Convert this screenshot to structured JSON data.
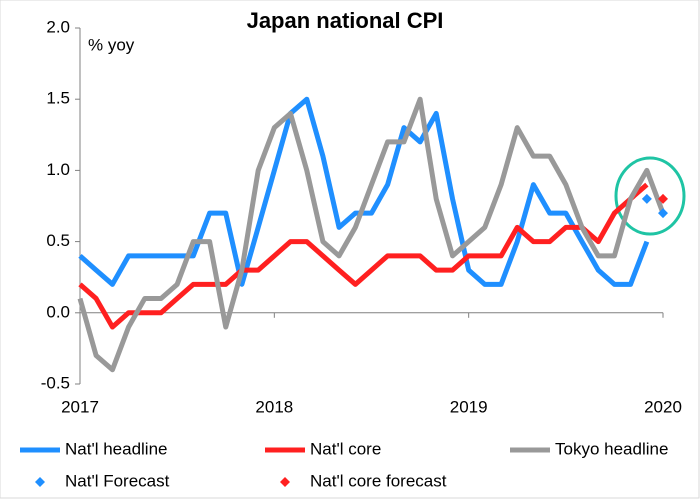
{
  "chart_data": {
    "type": "line",
    "title": "Japan national CPI",
    "y_label": "% yoy",
    "x": [
      2017,
      2017.083,
      2017.167,
      2017.25,
      2017.333,
      2017.417,
      2017.5,
      2017.583,
      2017.667,
      2017.75,
      2017.833,
      2017.917,
      2018,
      2018.083,
      2018.167,
      2018.25,
      2018.333,
      2018.417,
      2018.5,
      2018.583,
      2018.667,
      2018.75,
      2018.833,
      2018.917,
      2019,
      2019.083,
      2019.167,
      2019.25,
      2019.333,
      2019.417,
      2019.5,
      2019.583,
      2019.667,
      2019.75,
      2019.833,
      2019.917,
      2020
    ],
    "series": [
      {
        "name": "Nat'l headline",
        "color": "#1f8fff",
        "marker": "line",
        "values": [
          0.4,
          0.3,
          0.2,
          0.4,
          0.4,
          0.4,
          0.4,
          0.4,
          0.7,
          0.7,
          0.2,
          0.6,
          1.0,
          1.4,
          1.5,
          1.1,
          0.6,
          0.7,
          0.7,
          0.9,
          1.3,
          1.2,
          1.4,
          0.8,
          0.3,
          0.2,
          0.2,
          0.5,
          0.9,
          0.7,
          0.7,
          0.5,
          0.3,
          0.2,
          0.2,
          0.5,
          null
        ]
      },
      {
        "name": "Nat'l core",
        "color": "#ff2020",
        "marker": "line",
        "values": [
          0.2,
          0.1,
          -0.1,
          0.0,
          0.0,
          0.0,
          0.1,
          0.2,
          0.2,
          0.2,
          0.3,
          0.3,
          0.4,
          0.5,
          0.5,
          0.4,
          0.3,
          0.2,
          0.3,
          0.4,
          0.4,
          0.4,
          0.3,
          0.3,
          0.4,
          0.4,
          0.4,
          0.6,
          0.5,
          0.5,
          0.6,
          0.6,
          0.5,
          0.7,
          0.8,
          0.9,
          null
        ]
      },
      {
        "name": "Tokyo headline",
        "color": "#999999",
        "marker": "line",
        "values": [
          0.1,
          -0.3,
          -0.4,
          -0.1,
          0.1,
          0.1,
          0.2,
          0.5,
          0.5,
          -0.1,
          0.3,
          1.0,
          1.3,
          1.4,
          1.0,
          0.5,
          0.4,
          0.6,
          0.9,
          1.2,
          1.2,
          1.5,
          0.8,
          0.4,
          0.5,
          0.6,
          0.9,
          1.3,
          1.1,
          1.1,
          0.9,
          0.6,
          0.4,
          0.4,
          0.8,
          1.0,
          0.7
        ]
      },
      {
        "name": "Nat'l Forecast",
        "color": "#1f8fff",
        "marker": "diamond",
        "values": [
          null,
          null,
          null,
          null,
          null,
          null,
          null,
          null,
          null,
          null,
          null,
          null,
          null,
          null,
          null,
          null,
          null,
          null,
          null,
          null,
          null,
          null,
          null,
          null,
          null,
          null,
          null,
          null,
          null,
          null,
          null,
          null,
          null,
          null,
          null,
          0.8,
          0.7
        ]
      },
      {
        "name": "Nat'l core forecast",
        "color": "#ff2020",
        "marker": "diamond",
        "values": [
          null,
          null,
          null,
          null,
          null,
          null,
          null,
          null,
          null,
          null,
          null,
          null,
          null,
          null,
          null,
          null,
          null,
          null,
          null,
          null,
          null,
          null,
          null,
          null,
          null,
          null,
          null,
          null,
          null,
          null,
          null,
          null,
          null,
          null,
          null,
          null,
          0.8
        ]
      }
    ],
    "xlim": [
      2017,
      2020
    ],
    "xticks": [
      2017,
      2018,
      2019,
      2020
    ],
    "ylim": [
      -0.5,
      2.0
    ],
    "yticks": [
      -0.5,
      {
        "value": 0,
        "label": "0.0"
      },
      0.5,
      {
        "value": 1,
        "label": "1.0"
      },
      1.5,
      {
        "value": 2,
        "label": "2.0"
      }
    ],
    "grid": false
  }
}
